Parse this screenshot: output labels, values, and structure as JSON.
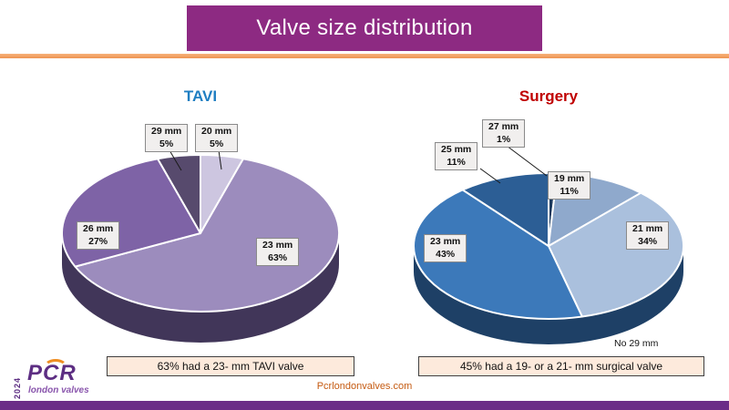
{
  "page": {
    "title": "Valve size distribution"
  },
  "theme": {
    "header_bg": "#8d2a82",
    "accent": "#ee9452",
    "accent_light": "#f6b27a",
    "bottom_bar": "#6b2d87",
    "caption_bg": "#fdeadc",
    "website_color": "#c55a11",
    "logo_purple": "#5d2e83",
    "logo_orange": "#ef8e22"
  },
  "chart_data": [
    {
      "type": "pie",
      "title": "TAVI",
      "title_color": "#1f7ec2",
      "start_angle": "top",
      "direction": "clockwise",
      "side_color": "#413659",
      "slices": [
        {
          "label": "20 mm",
          "value": 5,
          "pct_label": "5%",
          "color": "#cdc6e0"
        },
        {
          "label": "23 mm",
          "value": 63,
          "pct_label": "63%",
          "color": "#9c8cbd"
        },
        {
          "label": "26 mm",
          "value": 27,
          "pct_label": "27%",
          "color": "#7e63a6"
        },
        {
          "label": "29 mm",
          "value": 5,
          "pct_label": "5%",
          "color": "#574a6d"
        }
      ],
      "caption": "63% had a 23- mm TAVI valve"
    },
    {
      "type": "pie",
      "title": "Surgery",
      "title_color": "#c00000",
      "start_angle": "top",
      "direction": "clockwise",
      "side_color": "#1e4066",
      "slices": [
        {
          "label": "27 mm",
          "value": 1,
          "pct_label": "1%",
          "color": "#1c3a5e"
        },
        {
          "label": "19 mm",
          "value": 11,
          "pct_label": "11%",
          "color": "#8fa9cc"
        },
        {
          "label": "21 mm",
          "value": 34,
          "pct_label": "34%",
          "color": "#aac0dd"
        },
        {
          "label": "23 mm",
          "value": 43,
          "pct_label": "43%",
          "color": "#3c79ba"
        },
        {
          "label": "25 mm",
          "value": 11,
          "pct_label": "11%",
          "color": "#2c5e95"
        }
      ],
      "note": "No 29 mm",
      "caption": "45% had a 19- or a 21- mm surgical valve"
    }
  ],
  "footer": {
    "website": "Pcrlondonvalves.com",
    "logo": {
      "year": "2024",
      "brand": "PCR",
      "sub": "london valves"
    }
  }
}
